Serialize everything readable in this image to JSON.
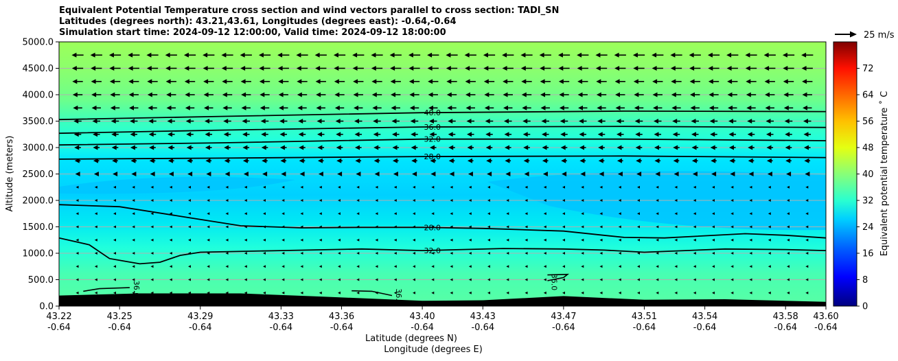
{
  "chart_data": {
    "type": "heatmap",
    "title_lines": [
      "Equivalent Potential Temperature cross section and wind vectors parallel to cross section: TADI_SN",
      "Latitudes (degrees north): 43.21,43.61, Longitudes (degrees east): -0.64,-0.64",
      "Simulation start time: 2024-09-12 12:00:00, Valid time: 2024-09-12 18:00:00"
    ],
    "xlabel_lines": [
      "Latitude (degrees N)",
      "Longitude (degrees E)"
    ],
    "ylabel": "Altitude (meters)",
    "colorbar_label": "Equivalent potential temperature ˚ C",
    "colorbar_range": [
      0,
      80
    ],
    "colorbar_ticks": [
      "0",
      "8",
      "16",
      "24",
      "32",
      "40",
      "48",
      "56",
      "64",
      "72"
    ],
    "quiver_key": "25 m/s",
    "xlim": [
      43.22,
      43.6
    ],
    "ylim": [
      0,
      5000
    ],
    "x_ticks": [
      {
        "lat": "43.22",
        "lon": "-0.64"
      },
      {
        "lat": "43.25",
        "lon": "-0.64"
      },
      {
        "lat": "43.29",
        "lon": "-0.64"
      },
      {
        "lat": "43.33",
        "lon": "-0.64"
      },
      {
        "lat": "43.36",
        "lon": "-0.64"
      },
      {
        "lat": "43.40",
        "lon": "-0.64"
      },
      {
        "lat": "43.43",
        "lon": "-0.64"
      },
      {
        "lat": "43.47",
        "lon": "-0.64"
      },
      {
        "lat": "43.51",
        "lon": "-0.64"
      },
      {
        "lat": "43.54",
        "lon": "-0.64"
      },
      {
        "lat": "43.58",
        "lon": "-0.64"
      },
      {
        "lat": "43.60",
        "lon": "-0.64"
      }
    ],
    "y_ticks": [
      "0.0",
      "500.0",
      "1000.0",
      "1500.0",
      "2000.0",
      "2500.0",
      "3000.0",
      "3500.0",
      "4000.0",
      "4500.0",
      "5000.0"
    ],
    "contours": [
      {
        "level": 40,
        "label": "40.0",
        "points": [
          [
            43.22,
            3530
          ],
          [
            43.3,
            3590
          ],
          [
            43.4,
            3660
          ],
          [
            43.5,
            3690
          ],
          [
            43.6,
            3680
          ]
        ]
      },
      {
        "level": 36,
        "label": "36.0",
        "points": [
          [
            43.22,
            3270
          ],
          [
            43.3,
            3330
          ],
          [
            43.4,
            3390
          ],
          [
            43.5,
            3400
          ],
          [
            43.6,
            3380
          ]
        ]
      },
      {
        "level": 32,
        "label": "32.0",
        "points": [
          [
            43.22,
            3050
          ],
          [
            43.3,
            3090
          ],
          [
            43.4,
            3160
          ],
          [
            43.5,
            3160
          ],
          [
            43.6,
            3130
          ]
        ]
      },
      {
        "level": 28,
        "label": "28.0",
        "points": [
          [
            43.22,
            2780
          ],
          [
            43.3,
            2800
          ],
          [
            43.4,
            2830
          ],
          [
            43.5,
            2840
          ],
          [
            43.6,
            2810
          ]
        ]
      },
      {
        "level": 28,
        "label": "28.0",
        "points": [
          [
            43.22,
            1920
          ],
          [
            43.25,
            1880
          ],
          [
            43.28,
            1700
          ],
          [
            43.31,
            1520
          ],
          [
            43.34,
            1480
          ],
          [
            43.37,
            1490
          ],
          [
            43.4,
            1490
          ],
          [
            43.43,
            1470
          ],
          [
            43.47,
            1420
          ],
          [
            43.5,
            1300
          ],
          [
            43.52,
            1290
          ],
          [
            43.56,
            1370
          ],
          [
            43.58,
            1340
          ],
          [
            43.6,
            1290
          ]
        ]
      },
      {
        "level": 32,
        "label": "32.0",
        "points": [
          [
            43.22,
            1290
          ],
          [
            43.235,
            1160
          ],
          [
            43.245,
            900
          ],
          [
            43.26,
            800
          ],
          [
            43.27,
            830
          ],
          [
            43.28,
            960
          ],
          [
            43.29,
            1020
          ],
          [
            43.33,
            1050
          ],
          [
            43.37,
            1080
          ],
          [
            43.4,
            1050
          ],
          [
            43.44,
            1090
          ],
          [
            43.47,
            1080
          ],
          [
            43.49,
            1060
          ],
          [
            43.51,
            1020
          ],
          [
            43.55,
            1080
          ],
          [
            43.58,
            1070
          ],
          [
            43.6,
            1050
          ]
        ]
      }
    ],
    "small_contours": [
      {
        "label": "36.0",
        "points": [
          [
            43.232,
            280
          ],
          [
            43.24,
            330
          ],
          [
            43.255,
            350
          ]
        ]
      },
      {
        "label": "36.0",
        "points": [
          [
            43.365,
            290
          ],
          [
            43.375,
            280
          ],
          [
            43.385,
            200
          ]
        ]
      },
      {
        "label": "36.0",
        "points": [
          [
            43.462,
            590
          ],
          [
            43.472,
            600
          ],
          [
            43.47,
            540
          ],
          [
            43.462,
            480
          ]
        ]
      }
    ],
    "terrain": [
      [
        43.22,
        200
      ],
      [
        43.26,
        240
      ],
      [
        43.31,
        240
      ],
      [
        43.35,
        180
      ],
      [
        43.4,
        100
      ],
      [
        43.43,
        110
      ],
      [
        43.47,
        190
      ],
      [
        43.51,
        120
      ],
      [
        43.55,
        130
      ],
      [
        43.6,
        80
      ]
    ],
    "wind_speed_by_level": [
      {
        "alt": 4750,
        "u": -18
      },
      {
        "alt": 4500,
        "u": -17
      },
      {
        "alt": 4250,
        "u": -16
      },
      {
        "alt": 4000,
        "u": -15
      },
      {
        "alt": 3750,
        "u": -14
      },
      {
        "alt": 3500,
        "u": -12
      },
      {
        "alt": 3250,
        "u": -11
      },
      {
        "alt": 3000,
        "u": -10
      },
      {
        "alt": 2750,
        "u": -9
      },
      {
        "alt": 2500,
        "u": -7
      },
      {
        "alt": 2250,
        "u": -6
      },
      {
        "alt": 2000,
        "u": -5
      },
      {
        "alt": 1750,
        "u": -4
      },
      {
        "alt": 1500,
        "u": -3
      },
      {
        "alt": 1250,
        "u": -3
      },
      {
        "alt": 1000,
        "u": -3
      },
      {
        "alt": 750,
        "u": -3
      },
      {
        "alt": 500,
        "u": -3
      },
      {
        "alt": 250,
        "u": -3
      }
    ]
  }
}
